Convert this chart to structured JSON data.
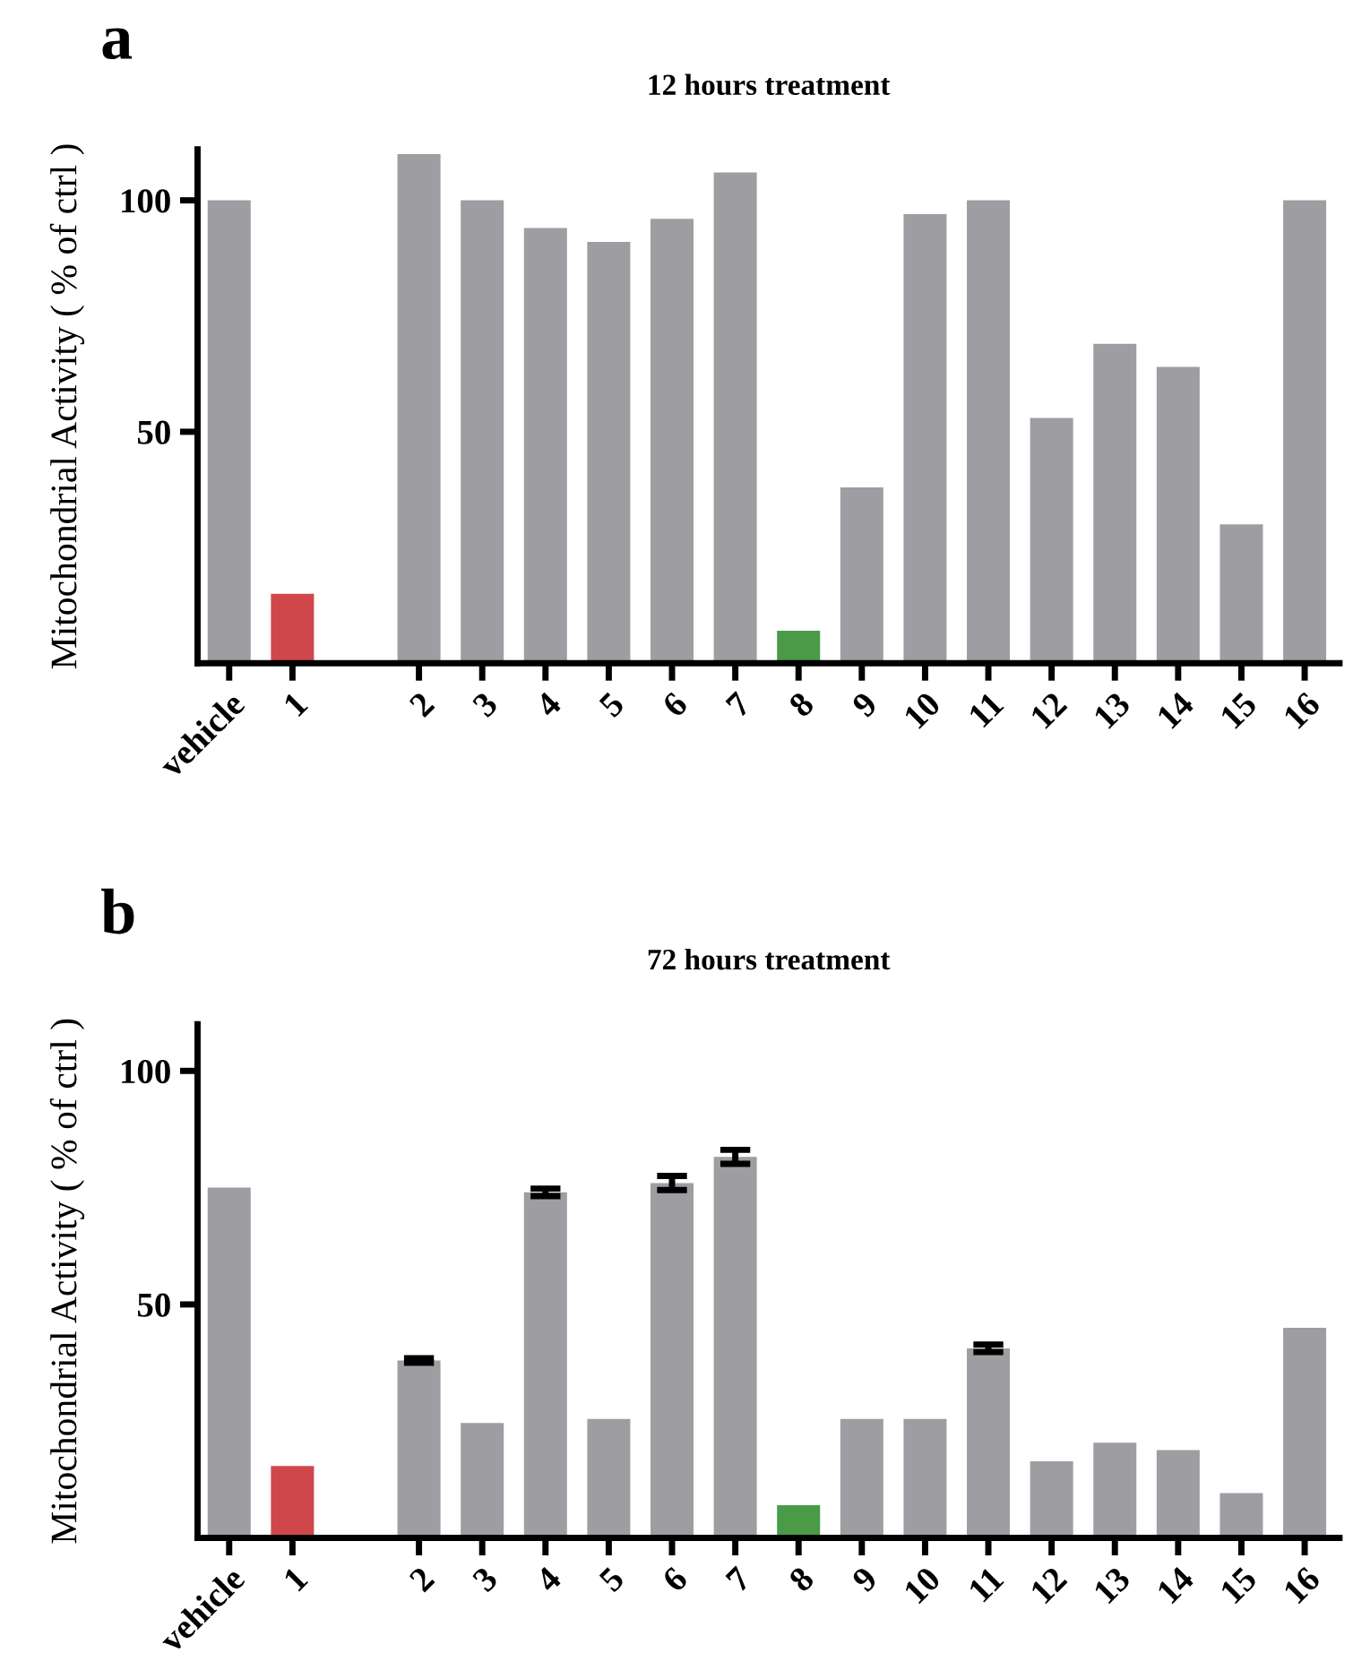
{
  "chart_data": [
    {
      "type": "bar",
      "title": "12 hours treatment",
      "ylabel": "Mitochondrial Activity ( % of ctrl )",
      "annotations": [
        "a"
      ],
      "categories": [
        "vehicle",
        "1",
        null,
        "2",
        "3",
        "4",
        "5",
        "6",
        "7",
        "8",
        "9",
        "10",
        "11",
        "12",
        "13",
        "14",
        "15",
        "16"
      ],
      "values": [
        100,
        15,
        null,
        110,
        100,
        94,
        91,
        96,
        106,
        7,
        38,
        97,
        100,
        53,
        69,
        64,
        30,
        100
      ],
      "colors": [
        "#9e9ea2",
        "#d0474b",
        "#9e9ea2",
        "#9e9ea2",
        "#9e9ea2",
        "#9e9ea2",
        "#9e9ea2",
        "#9e9ea2",
        "#9e9ea2",
        "#4a9a48",
        "#9e9ea2",
        "#9e9ea2",
        "#9e9ea2",
        "#9e9ea2",
        "#9e9ea2",
        "#9e9ea2",
        "#9e9ea2",
        "#9e9ea2"
      ],
      "ylim": [
        0,
        111
      ],
      "yticks": [
        50,
        100
      ],
      "grid": false,
      "legend": false
    },
    {
      "type": "bar",
      "title": "72 hours treatment",
      "ylabel": "Mitochondrial Activity ( % of ctrl )",
      "annotations": [
        "b"
      ],
      "categories": [
        "vehicle",
        "1",
        null,
        "2",
        "3",
        "4",
        "5",
        "6",
        "7",
        "8",
        "9",
        "10",
        "11",
        "12",
        "13",
        "14",
        "15",
        "16"
      ],
      "values": [
        75,
        15.4,
        null,
        38,
        24.6,
        74,
        25.5,
        76,
        81.6,
        7,
        25.5,
        25.5,
        40.6,
        16.4,
        20.4,
        18.8,
        9.6,
        45
      ],
      "errors": [
        null,
        null,
        null,
        0.5,
        null,
        0.8,
        null,
        1.5,
        1.5,
        null,
        null,
        null,
        0.8,
        null,
        null,
        null,
        null,
        null
      ],
      "colors": [
        "#9e9ea2",
        "#d0474b",
        "#9e9ea2",
        "#9e9ea2",
        "#9e9ea2",
        "#9e9ea2",
        "#9e9ea2",
        "#9e9ea2",
        "#9e9ea2",
        "#4a9a48",
        "#9e9ea2",
        "#9e9ea2",
        "#9e9ea2",
        "#9e9ea2",
        "#9e9ea2",
        "#9e9ea2",
        "#9e9ea2",
        "#9e9ea2"
      ],
      "ylim": [
        0,
        110
      ],
      "yticks": [
        50,
        100
      ],
      "grid": false,
      "legend": false
    }
  ]
}
